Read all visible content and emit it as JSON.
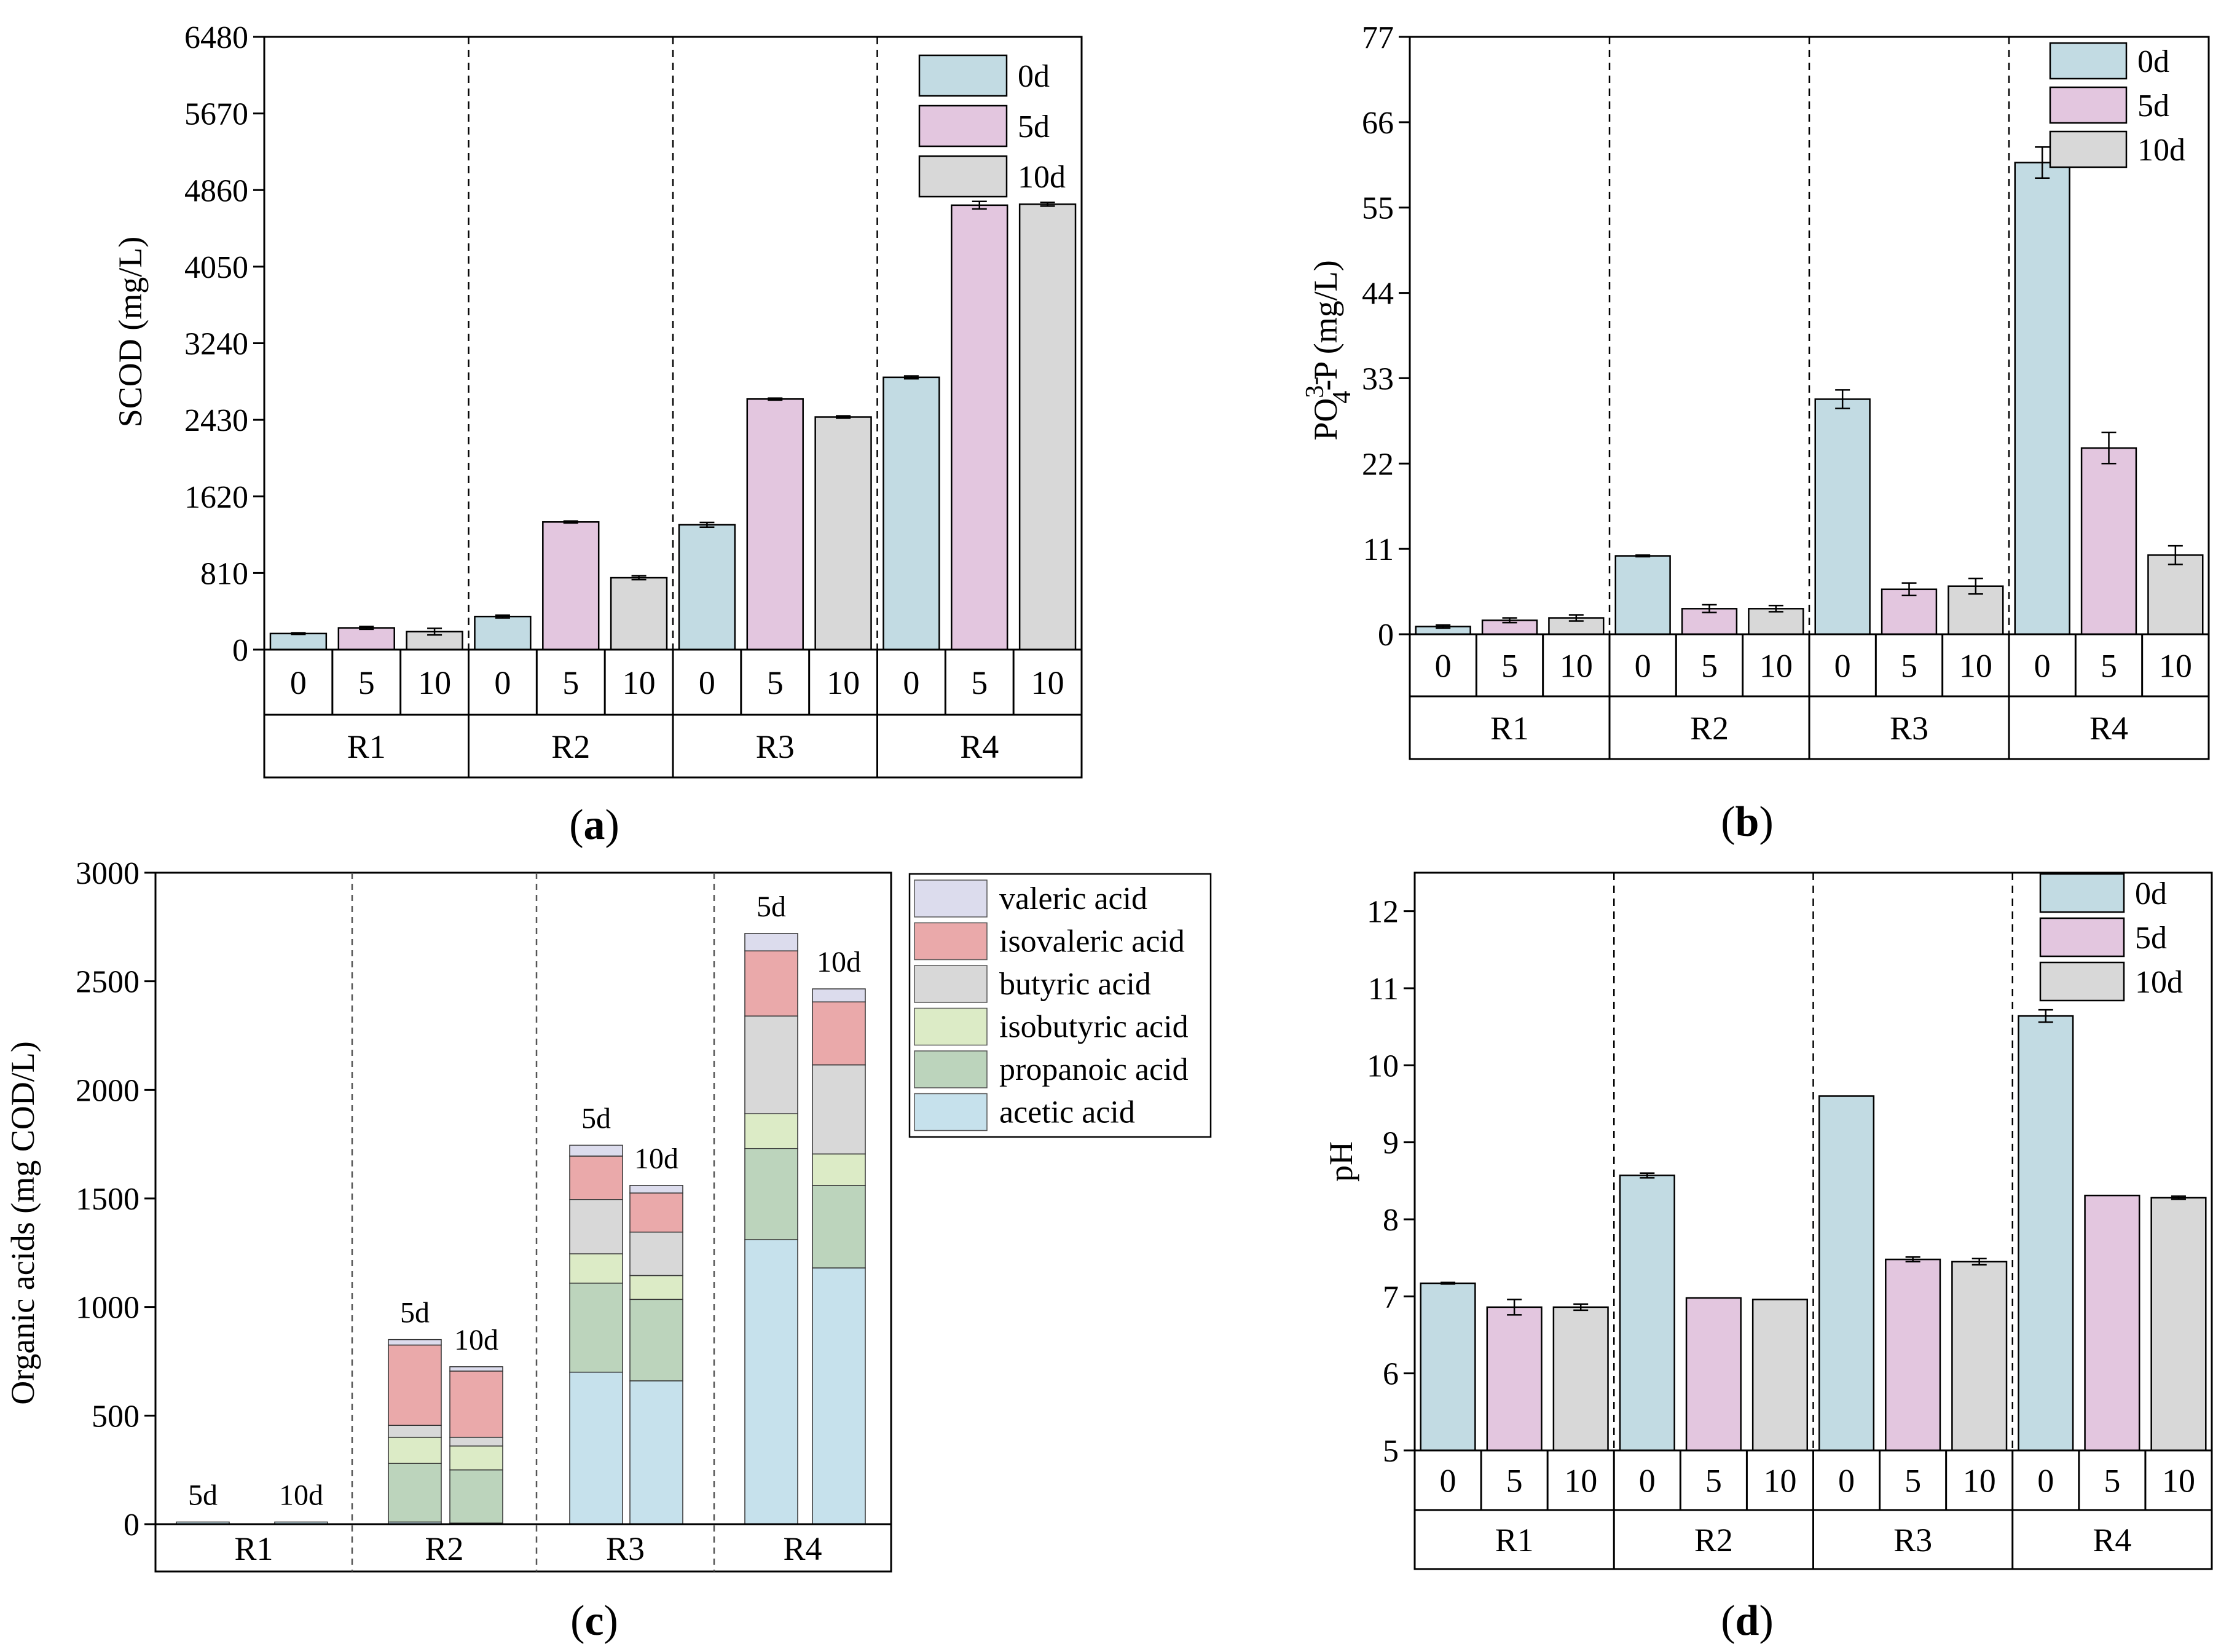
{
  "panels": {
    "a": {
      "label": "(a)",
      "ylabel": "SCOD (mg/L)",
      "yticks": [
        "0",
        "810",
        "1620",
        "2430",
        "3240",
        "4050",
        "4860",
        "5670",
        "6480"
      ],
      "xticks": [
        "0",
        "5",
        "10"
      ],
      "groups": [
        "R1",
        "R2",
        "R3",
        "R4"
      ],
      "legend": [
        "0d",
        "5d",
        "10d"
      ]
    },
    "b": {
      "label": "(b)",
      "ylabel_parts": {
        "main": "PO",
        "sup": "3-",
        "sub": "4",
        "rest": "-P (mg/L)"
      },
      "yticks": [
        "0",
        "11",
        "22",
        "33",
        "44",
        "55",
        "66",
        "77"
      ],
      "xticks": [
        "0",
        "5",
        "10"
      ],
      "groups": [
        "R1",
        "R2",
        "R3",
        "R4"
      ],
      "legend": [
        "0d",
        "5d",
        "10d"
      ]
    },
    "c": {
      "label": "(c)",
      "ylabel": "Organic acids (mg COD/L)",
      "yticks": [
        "0",
        "500",
        "1000",
        "1500",
        "2000",
        "2500",
        "3000"
      ],
      "groups": [
        "R1",
        "R2",
        "R3",
        "R4"
      ],
      "bar_labels": [
        "5d",
        "10d"
      ],
      "legend": [
        "valeric acid",
        "isovaleric acid",
        "butyric acid",
        "isobutyric acid",
        "propanoic acid",
        "acetic acid"
      ]
    },
    "d": {
      "label": "(d)",
      "ylabel": "pH",
      "yticks": [
        "5",
        "6",
        "7",
        "8",
        "9",
        "10",
        "11",
        "12"
      ],
      "xticks": [
        "0",
        "5",
        "10"
      ],
      "groups": [
        "R1",
        "R2",
        "R3",
        "R4"
      ],
      "legend": [
        "0d",
        "5d",
        "10d"
      ]
    }
  },
  "colors": {
    "d0": "#c2dbe3",
    "d5": "#e3c6df",
    "d10": "#d8d8d8",
    "valeric": "#dcdced",
    "isovaleric": "#eaa9aa",
    "butyric": "#d8d8d8",
    "isobutyric": "#dcebc6",
    "propanoic": "#bcd4bc",
    "acetic": "#c6e1ec"
  },
  "chart_data": [
    {
      "panel": "a",
      "type": "bar",
      "ylabel": "SCOD (mg/L)",
      "ylim": [
        0,
        6480
      ],
      "categories": [
        "R1",
        "R2",
        "R3",
        "R4"
      ],
      "series": [
        {
          "name": "0d",
          "values": [
            170,
            350,
            1320,
            2880
          ],
          "errors": [
            8,
            15,
            25,
            15
          ]
        },
        {
          "name": "5d",
          "values": [
            230,
            1350,
            2650,
            4700
          ],
          "errors": [
            15,
            10,
            10,
            40
          ]
        },
        {
          "name": "10d",
          "values": [
            190,
            760,
            2460,
            4710
          ],
          "errors": [
            35,
            20,
            12,
            20
          ]
        }
      ]
    },
    {
      "panel": "b",
      "type": "bar",
      "ylabel": "PO43--P (mg/L)",
      "ylim": [
        0,
        77
      ],
      "categories": [
        "R1",
        "R2",
        "R3",
        "R4"
      ],
      "series": [
        {
          "name": "0d",
          "values": [
            1.0,
            10.1,
            30.3,
            60.8
          ],
          "errors": [
            0.2,
            0.1,
            1.2,
            2.0
          ]
        },
        {
          "name": "5d",
          "values": [
            1.8,
            3.3,
            5.8,
            24.0
          ],
          "errors": [
            0.3,
            0.5,
            0.8,
            2.0
          ]
        },
        {
          "name": "10d",
          "values": [
            2.1,
            3.3,
            6.2,
            10.2
          ],
          "errors": [
            0.4,
            0.4,
            1.0,
            1.2
          ]
        }
      ]
    },
    {
      "panel": "c",
      "type": "bar",
      "stacked": true,
      "ylabel": "Organic acids (mg COD/L)",
      "ylim": [
        0,
        3000
      ],
      "groups": [
        "R1",
        "R2",
        "R3",
        "R4"
      ],
      "bars_per_group": [
        "5d",
        "10d"
      ],
      "components": [
        "acetic acid",
        "propanoic acid",
        "isobutyric acid",
        "butyric acid",
        "isovaleric acid",
        "valeric acid"
      ],
      "bars": [
        {
          "group": "R1",
          "day": "5d",
          "values": [
            10,
            0,
            0,
            0,
            0,
            0
          ]
        },
        {
          "group": "R1",
          "day": "10d",
          "values": [
            10,
            0,
            0,
            0,
            0,
            0
          ]
        },
        {
          "group": "R2",
          "day": "5d",
          "values": [
            10,
            270,
            120,
            55,
            370,
            25
          ]
        },
        {
          "group": "R2",
          "day": "10d",
          "values": [
            5,
            245,
            110,
            40,
            305,
            20
          ]
        },
        {
          "group": "R3",
          "day": "5d",
          "values": [
            700,
            410,
            135,
            250,
            200,
            50
          ]
        },
        {
          "group": "R3",
          "day": "10d",
          "values": [
            660,
            375,
            110,
            200,
            180,
            35
          ]
        },
        {
          "group": "R4",
          "day": "5d",
          "values": [
            1310,
            420,
            160,
            450,
            300,
            80
          ]
        },
        {
          "group": "R4",
          "day": "10d",
          "values": [
            1180,
            380,
            145,
            410,
            290,
            60
          ]
        }
      ]
    },
    {
      "panel": "d",
      "type": "bar",
      "ylabel": "pH",
      "ylim": [
        5,
        12.5
      ],
      "categories": [
        "R1",
        "R2",
        "R3",
        "R4"
      ],
      "series": [
        {
          "name": "0d",
          "values": [
            7.17,
            8.57,
            9.6,
            10.64
          ],
          "errors": [
            0.01,
            0.03,
            0.0,
            0.08
          ]
        },
        {
          "name": "5d",
          "values": [
            6.86,
            6.98,
            7.48,
            8.31
          ],
          "errors": [
            0.1,
            0.0,
            0.03,
            0.0
          ]
        },
        {
          "name": "10d",
          "values": [
            6.86,
            6.96,
            7.45,
            8.28
          ],
          "errors": [
            0.04,
            0.0,
            0.04,
            0.02
          ]
        }
      ]
    }
  ]
}
